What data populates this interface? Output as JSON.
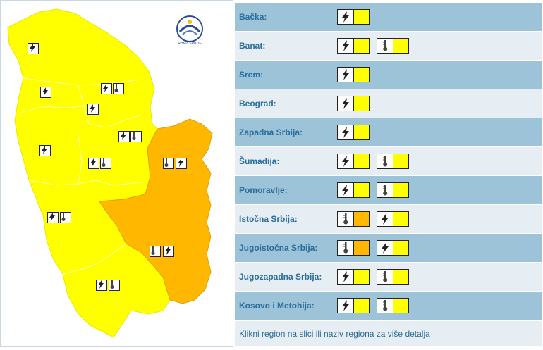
{
  "colors": {
    "yellow": "#ffff00",
    "orange": "#ffb700",
    "row_dark": "#9dc3d8",
    "row_light": "#e6eef4",
    "link": "#2a6e9c"
  },
  "logo": {
    "text": "RHMZ SRBIJE"
  },
  "regions": [
    {
      "name": "Bačka:",
      "warnings": [
        {
          "icon": "lightning-icon",
          "level": "yellow"
        }
      ]
    },
    {
      "name": "Banat:",
      "warnings": [
        {
          "icon": "lightning-icon",
          "level": "yellow"
        },
        {
          "icon": "thermometer-icon",
          "level": "yellow"
        }
      ]
    },
    {
      "name": "Srem:",
      "warnings": [
        {
          "icon": "lightning-icon",
          "level": "yellow"
        }
      ]
    },
    {
      "name": "Beograd:",
      "warnings": [
        {
          "icon": "lightning-icon",
          "level": "yellow"
        }
      ]
    },
    {
      "name": "Zapadna Srbija:",
      "warnings": [
        {
          "icon": "lightning-icon",
          "level": "yellow"
        }
      ]
    },
    {
      "name": "Šumadija:",
      "warnings": [
        {
          "icon": "lightning-icon",
          "level": "yellow"
        },
        {
          "icon": "thermometer-icon",
          "level": "yellow"
        }
      ]
    },
    {
      "name": "Pomoravlje:",
      "warnings": [
        {
          "icon": "lightning-icon",
          "level": "yellow"
        },
        {
          "icon": "thermometer-icon",
          "level": "yellow"
        }
      ]
    },
    {
      "name": "Istočna Srbija:",
      "warnings": [
        {
          "icon": "thermometer-icon",
          "level": "orange"
        },
        {
          "icon": "lightning-icon",
          "level": "yellow"
        }
      ]
    },
    {
      "name": "Jugoistočna Srbija:",
      "warnings": [
        {
          "icon": "thermometer-icon",
          "level": "orange"
        },
        {
          "icon": "lightning-icon",
          "level": "yellow"
        }
      ]
    },
    {
      "name": "Jugozapadna Srbija:",
      "warnings": [
        {
          "icon": "lightning-icon",
          "level": "yellow"
        },
        {
          "icon": "thermometer-icon",
          "level": "yellow"
        }
      ]
    },
    {
      "name": "Kosovo i Metohija:",
      "warnings": [
        {
          "icon": "lightning-icon",
          "level": "yellow"
        },
        {
          "icon": "thermometer-icon",
          "level": "yellow"
        }
      ]
    }
  ],
  "footer": {
    "text": "Klikni region na slici ili naziv regiona za više detalja"
  }
}
